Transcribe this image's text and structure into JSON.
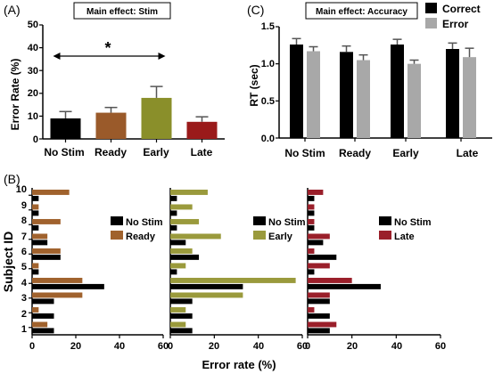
{
  "chart_data": [
    {
      "panel_label": "(A)",
      "type": "bar",
      "title": "Main effect: Stim",
      "ylabel": "Error Rate (%)",
      "ylim": [
        0,
        50
      ],
      "yticks": [
        "0",
        "10",
        "20",
        "30",
        "40",
        "50"
      ],
      "categories": [
        "No Stim",
        "Ready",
        "Early",
        "Late"
      ],
      "values": [
        9,
        11.5,
        18,
        7.5
      ],
      "errors": [
        3,
        2.3,
        5,
        2.2
      ],
      "colors": [
        "#000000",
        "#9a5a2a",
        "#8a8f2a",
        "#9a1a1a"
      ],
      "significance": {
        "from": "No Stim",
        "to": "Early",
        "marker": "*"
      }
    },
    {
      "panel_label": "(C)",
      "type": "bar",
      "title": "Main effect: Accuracy",
      "ylabel": "RT (sec)",
      "ylim": [
        0,
        1.5
      ],
      "yticks": [
        "0.0",
        "0.5",
        "1.0",
        "1.5"
      ],
      "categories": [
        "No Stim",
        "Ready",
        "Early",
        "Late"
      ],
      "series": [
        {
          "name": "Correct",
          "color": "#000000",
          "values": [
            1.26,
            1.16,
            1.26,
            1.2
          ],
          "errors": [
            0.08,
            0.08,
            0.07,
            0.08
          ]
        },
        {
          "name": "Error",
          "color": "#a8a8a8",
          "values": [
            1.17,
            1.05,
            1.0,
            1.09
          ],
          "errors": [
            0.06,
            0.07,
            0.05,
            0.12
          ]
        }
      ]
    },
    {
      "panel_label": "(B)",
      "type": "bar",
      "orientation": "horizontal",
      "ylabel": "Subject ID",
      "xlabel": "Error rate (%)",
      "subjects": [
        "1",
        "2",
        "3",
        "4",
        "5",
        "6",
        "7",
        "8",
        "9",
        "10"
      ],
      "xlim": [
        0,
        60
      ],
      "xticks": [
        "0",
        "20",
        "40",
        "60"
      ],
      "no_stim": {
        "name": "No Stim",
        "color": "#000000",
        "values": [
          10,
          10,
          10,
          33,
          3,
          13,
          7,
          3,
          3,
          3
        ]
      },
      "comparisons": [
        {
          "name": "Ready",
          "color": "#a0622d",
          "values": [
            7,
            3,
            23,
            23,
            3,
            13,
            7,
            13,
            3,
            17
          ]
        },
        {
          "name": "Early",
          "color": "#9a9a3c",
          "values": [
            7,
            7,
            33,
            57,
            7,
            10,
            23,
            13,
            10,
            17
          ]
        },
        {
          "name": "Late",
          "color": "#9a1f2a",
          "values": [
            13,
            3,
            10,
            20,
            10,
            3,
            10,
            3,
            3,
            7
          ]
        }
      ]
    }
  ]
}
